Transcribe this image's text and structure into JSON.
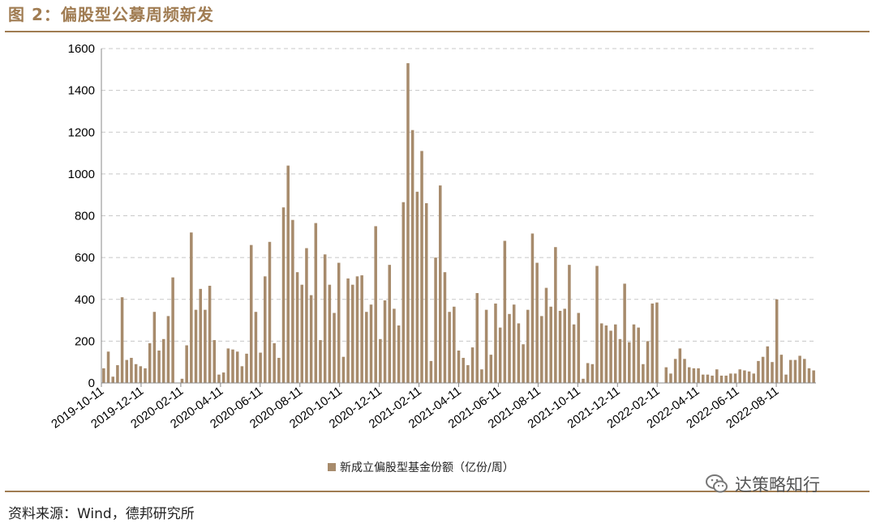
{
  "header": {
    "title": "图 2：偏股型公募周频新发"
  },
  "footer": {
    "source": "资料来源：Wind，德邦研究所"
  },
  "watermark": {
    "text": "达策略知行",
    "icon": "wechat-icon"
  },
  "colors": {
    "bar": "#a78b6c",
    "accent": "#a07c52",
    "grid": "#c8c8c8",
    "axis": "#888888"
  },
  "chart_data": {
    "type": "bar",
    "title": "",
    "xlabel": "",
    "ylabel": "",
    "ylim": [
      0,
      1600
    ],
    "yticks": [
      0,
      200,
      400,
      600,
      800,
      1000,
      1200,
      1400,
      1600
    ],
    "grid": true,
    "legend_position": "bottom-center",
    "x_tick_labels": [
      "2019-10-11",
      "2019-12-11",
      "2020-02-11",
      "2020-04-11",
      "2020-06-11",
      "2020-08-11",
      "2020-10-11",
      "2020-12-11",
      "2021-02-11",
      "2021-04-11",
      "2021-06-11",
      "2021-08-11",
      "2021-10-11",
      "2021-12-11",
      "2022-02-11",
      "2022-04-11",
      "2022-06-11",
      "2022-08-11"
    ],
    "series": [
      {
        "name": "新成立偏股型基金份额（亿份/周）",
        "values": [
          70,
          150,
          30,
          85,
          410,
          110,
          120,
          90,
          80,
          70,
          190,
          340,
          155,
          210,
          320,
          505,
          0,
          20,
          180,
          720,
          350,
          450,
          350,
          465,
          205,
          40,
          50,
          165,
          160,
          150,
          80,
          140,
          660,
          340,
          145,
          510,
          675,
          190,
          120,
          840,
          1040,
          780,
          530,
          470,
          645,
          420,
          765,
          205,
          615,
          470,
          335,
          575,
          125,
          500,
          470,
          510,
          515,
          340,
          375,
          750,
          210,
          395,
          565,
          355,
          275,
          865,
          1530,
          1210,
          915,
          1110,
          860,
          105,
          600,
          945,
          530,
          340,
          365,
          155,
          120,
          85,
          170,
          430,
          65,
          350,
          135,
          380,
          265,
          680,
          330,
          375,
          285,
          185,
          350,
          715,
          575,
          320,
          455,
          365,
          650,
          345,
          355,
          565,
          280,
          335,
          20,
          95,
          90,
          560,
          285,
          275,
          250,
          280,
          210,
          475,
          195,
          280,
          265,
          90,
          200,
          380,
          385,
          0,
          75,
          45,
          115,
          165,
          115,
          75,
          70,
          70,
          40,
          40,
          35,
          65,
          35,
          35,
          45,
          45,
          65,
          60,
          55,
          45,
          105,
          125,
          175,
          100,
          400,
          135,
          40,
          110,
          110,
          130,
          115,
          70,
          60
        ]
      }
    ]
  }
}
